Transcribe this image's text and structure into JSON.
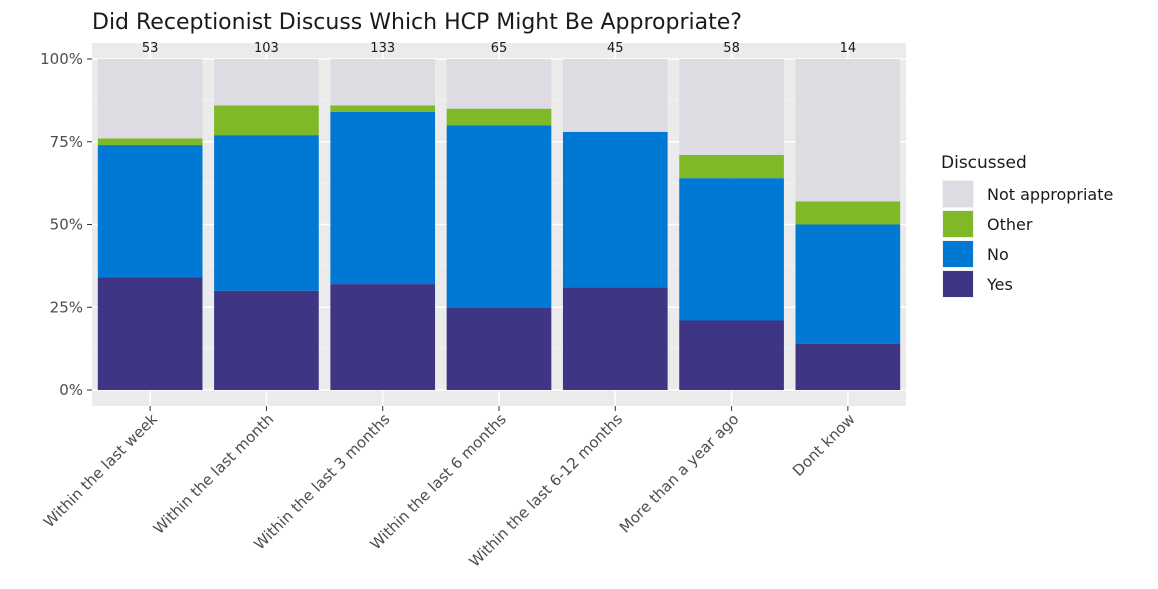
{
  "chart_data": {
    "type": "bar",
    "stacked": true,
    "percent": true,
    "title": "Did Receptionist Discuss Which HCP Might Be Appropriate?",
    "xlabel": "",
    "ylabel": "",
    "ylim": [
      0,
      1
    ],
    "yticks": [
      "0%",
      "25%",
      "50%",
      "75%",
      "100%"
    ],
    "grid": true,
    "legend_position": "right",
    "categories": [
      "Within the last week",
      "Within the last month",
      "Within the last 3 months",
      "Within the last 6 months",
      "Within the last 6-12 months",
      "More than a year ago",
      "Dont know"
    ],
    "counts": [
      "53",
      "103",
      "133",
      "65",
      "45",
      "58",
      "14"
    ],
    "legend": {
      "title": "Discussed",
      "entries": [
        "Not appropriate",
        "Other",
        "No",
        "Yes"
      ]
    },
    "series": [
      {
        "name": "Yes",
        "color": "#3e3585",
        "values": [
          0.34,
          0.3,
          0.32,
          0.25,
          0.31,
          0.21,
          0.14
        ]
      },
      {
        "name": "No",
        "color": "#0078d4",
        "values": [
          0.4,
          0.47,
          0.52,
          0.55,
          0.47,
          0.43,
          0.36
        ]
      },
      {
        "name": "Other",
        "color": "#7fb927",
        "values": [
          0.02,
          0.09,
          0.02,
          0.05,
          0.0,
          0.07,
          0.07
        ]
      },
      {
        "name": "Not appropriate",
        "color": "#dedbe3",
        "values": [
          0.24,
          0.14,
          0.14,
          0.15,
          0.22,
          0.29,
          0.43
        ]
      }
    ]
  }
}
